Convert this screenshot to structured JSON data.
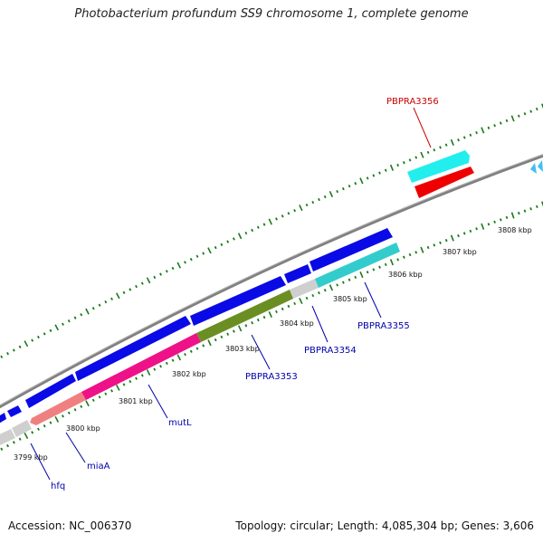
{
  "title": "Photobacterium profundum SS9 chromosome 1, complete genome",
  "footer": {
    "accession": "Accession: NC_006370",
    "summary": "Topology: circular; Length: 4,085,304 bp; Genes: 3,606"
  },
  "colors": {
    "backbone": "#808080",
    "tick": "#1a7a1a",
    "gene_blue": "#0a0ae6",
    "gene_grey": "#c8c8c8",
    "gene_salmon": "#f08080",
    "gene_magenta": "#ee1188",
    "gene_olive": "#6b8e23",
    "gene_teal": "#33cccc",
    "gene_cyan": "#22eeee",
    "gene_red": "#ee0000",
    "label_blue": "#0000aa",
    "label_red": "#cc0000"
  },
  "scale_labels": [
    "3799 kbp",
    "3800 kbp",
    "3801 kbp",
    "3802 kbp",
    "3803 kbp",
    "3804 kbp",
    "3805 kbp",
    "3806 kbp",
    "3807 kbp",
    "3808 kbp"
  ],
  "genes": [
    {
      "name": "hfq",
      "color": "label_blue"
    },
    {
      "name": "miaA",
      "color": "label_blue"
    },
    {
      "name": "mutL",
      "color": "label_blue"
    },
    {
      "name": "PBPRA3353",
      "color": "label_blue"
    },
    {
      "name": "PBPRA3354",
      "color": "label_blue"
    },
    {
      "name": "PBPRA3355",
      "color": "label_blue"
    },
    {
      "name": "PBPRA3356",
      "color": "label_red"
    }
  ]
}
